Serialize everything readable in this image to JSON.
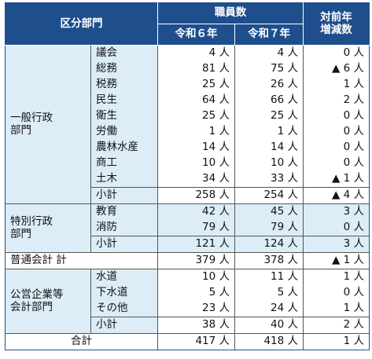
{
  "header": {
    "division": "区分部門",
    "staff": "職員数",
    "r6": "令和６年",
    "r7": "令和７年",
    "diff": [
      "対前年",
      "増減数"
    ]
  },
  "groups": [
    {
      "label": [
        "一般行政",
        "部門"
      ],
      "rows": [
        {
          "item": "議会",
          "r6": "4 人",
          "r7": "4 人",
          "diff": "0 人"
        },
        {
          "item": "総務",
          "r6": "81 人",
          "r7": "75 人",
          "diff": "▲ 6 人"
        },
        {
          "item": "税務",
          "r6": "25 人",
          "r7": "26 人",
          "diff": "1 人"
        },
        {
          "item": "民生",
          "r6": "64 人",
          "r7": "66 人",
          "diff": "2 人"
        },
        {
          "item": "衛生",
          "r6": "25 人",
          "r7": "25 人",
          "diff": "0 人"
        },
        {
          "item": "労働",
          "r6": "1 人",
          "r7": "1 人",
          "diff": "0 人"
        },
        {
          "item": "農林水産",
          "r6": "14 人",
          "r7": "14 人",
          "diff": "0 人"
        },
        {
          "item": "商工",
          "r6": "10 人",
          "r7": "10 人",
          "diff": "0 人"
        },
        {
          "item": "土木",
          "r6": "34 人",
          "r7": "33 人",
          "diff": "▲ 1 人"
        }
      ],
      "subtotal": {
        "item": "小計",
        "r6": "258 人",
        "r7": "254 人",
        "diff": "▲ 4 人"
      }
    },
    {
      "label": [
        "特別行政",
        "部門"
      ],
      "rows": [
        {
          "item": "教育",
          "r6": "42 人",
          "r7": "45 人",
          "diff": "3 人"
        },
        {
          "item": "消防",
          "r6": "79 人",
          "r7": "79 人",
          "diff": "0 人"
        }
      ],
      "subtotal": {
        "item": "小計",
        "r6": "121 人",
        "r7": "124 人",
        "diff": "3 人"
      }
    },
    {
      "label": [
        "公営企業等",
        "会計部門"
      ],
      "rows": [
        {
          "item": "水道",
          "r6": "10 人",
          "r7": "11 人",
          "diff": "1 人"
        },
        {
          "item": "下水道",
          "r6": "5 人",
          "r7": "5 人",
          "diff": "0 人"
        },
        {
          "item": "その他",
          "r6": "23 人",
          "r7": "24 人",
          "diff": "1 人"
        }
      ],
      "subtotal": {
        "item": "小計",
        "r6": "38 人",
        "r7": "40 人",
        "diff": "2 人"
      }
    }
  ],
  "ordinary_total": {
    "item": "普通会計 計",
    "r6": "379 人",
    "r7": "378 人",
    "diff": "▲ 1 人"
  },
  "grand_total": {
    "item": "合計",
    "r6": "417 人",
    "r7": "418 人",
    "diff": "1 人"
  }
}
